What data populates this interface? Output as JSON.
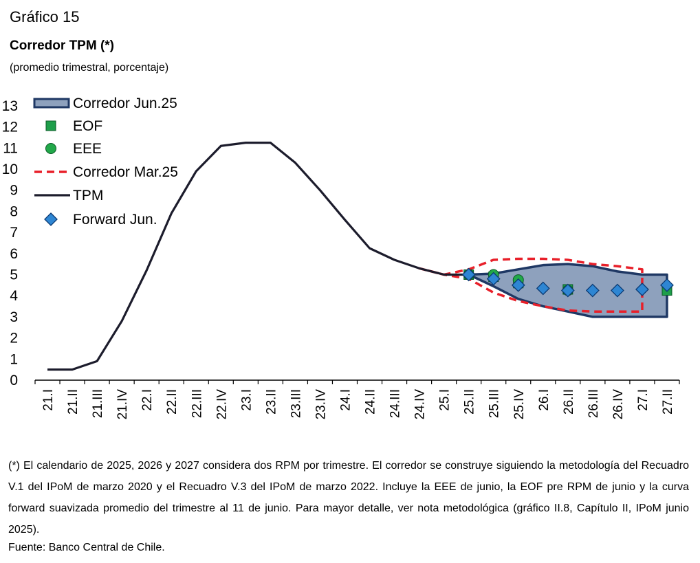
{
  "figure": {
    "label": "Gráfico 15",
    "title": "Corredor TPM (*)",
    "subtitle": "(promedio trimestral, porcentaje)"
  },
  "note": "(*) El calendario de 2025, 2026 y 2027 considera dos RPM por trimestre. El corredor se construye siguiendo la metodología del Recuadro V.1 del IPoM de marzo 2020 y el Recuadro V.3 del IPoM de marzo 2022. Incluye la EEE de junio, la EOF pre RPM de junio y la curva forward suavizada promedio del trimestre al 11 de junio. Para mayor detalle, ver nota metodológica (gráfico II.8, Capítulo II, IPoM junio 2025).",
  "source": "Fuente: Banco Central de Chile.",
  "colors": {
    "band_fill": "#8ea1bd",
    "band_edge": "#1f3864",
    "tpm": "#1c1c2c",
    "corridor_mar": "#e8202a",
    "eof": "#1e9e4a",
    "eee": "#22a84a",
    "forward": "#2e86d3"
  },
  "chart_data": {
    "type": "line",
    "categories": [
      "21.I",
      "21.II",
      "21.III",
      "21.IV",
      "22.I",
      "22.II",
      "22.III",
      "22.IV",
      "23.I",
      "23.II",
      "23.III",
      "23.IV",
      "24.I",
      "24.II",
      "24.III",
      "24.IV",
      "25.I",
      "25.II",
      "25.III",
      "25.IV",
      "26.I",
      "26.II",
      "26.III",
      "26.IV",
      "27.I",
      "27.II"
    ],
    "ylim": [
      0,
      13
    ],
    "yticks": [
      0,
      1,
      2,
      3,
      4,
      5,
      6,
      7,
      8,
      9,
      10,
      11,
      12,
      13
    ],
    "legend_position": "top-left",
    "series": [
      {
        "name": "Corredor Jun.25",
        "kind": "band",
        "upper": [
          null,
          null,
          null,
          null,
          null,
          null,
          null,
          null,
          null,
          null,
          null,
          null,
          null,
          null,
          null,
          null,
          null,
          5.0,
          5.05,
          5.25,
          5.45,
          5.5,
          5.4,
          5.15,
          5.0,
          5.0
        ],
        "lower": [
          null,
          null,
          null,
          null,
          null,
          null,
          null,
          null,
          null,
          null,
          null,
          null,
          null,
          null,
          null,
          null,
          null,
          5.0,
          4.45,
          3.85,
          3.5,
          3.25,
          3.0,
          3.0,
          3.0,
          3.0
        ]
      },
      {
        "name": "EOF",
        "kind": "marker",
        "shape": "square",
        "values": [
          null,
          null,
          null,
          null,
          null,
          null,
          null,
          null,
          null,
          null,
          null,
          null,
          null,
          null,
          null,
          null,
          null,
          5.0,
          4.9,
          4.6,
          null,
          4.3,
          null,
          null,
          null,
          4.25
        ]
      },
      {
        "name": "EEE",
        "kind": "marker",
        "shape": "circle",
        "values": [
          null,
          null,
          null,
          null,
          null,
          null,
          null,
          null,
          null,
          null,
          null,
          null,
          null,
          null,
          null,
          null,
          null,
          5.0,
          5.0,
          4.75,
          null,
          4.25,
          null,
          null,
          null,
          null
        ]
      },
      {
        "name": "Corredor Mar.25",
        "kind": "dashed-band",
        "upper": [
          null,
          null,
          null,
          null,
          null,
          null,
          null,
          null,
          null,
          null,
          null,
          null,
          null,
          null,
          null,
          5.3,
          5.0,
          5.25,
          5.7,
          5.75,
          5.75,
          5.7,
          5.5,
          5.4,
          5.25,
          null
        ],
        "lower": [
          null,
          null,
          null,
          null,
          null,
          null,
          null,
          null,
          null,
          null,
          null,
          null,
          null,
          null,
          null,
          5.3,
          5.0,
          4.8,
          4.15,
          3.75,
          3.5,
          3.3,
          3.25,
          3.25,
          3.25,
          null
        ]
      },
      {
        "name": "TPM",
        "kind": "line",
        "values": [
          0.5,
          0.5,
          0.9,
          2.8,
          5.2,
          7.9,
          9.9,
          11.1,
          11.25,
          11.25,
          10.3,
          9.0,
          7.6,
          6.25,
          5.7,
          5.3,
          5.0,
          5.0,
          null,
          null,
          null,
          null,
          null,
          null,
          null,
          null
        ]
      },
      {
        "name": "Forward Jun.",
        "kind": "marker",
        "shape": "diamond",
        "values": [
          null,
          null,
          null,
          null,
          null,
          null,
          null,
          null,
          null,
          null,
          null,
          null,
          null,
          null,
          null,
          null,
          null,
          5.0,
          4.8,
          4.5,
          4.35,
          4.25,
          4.25,
          4.25,
          4.3,
          4.5
        ]
      }
    ]
  }
}
